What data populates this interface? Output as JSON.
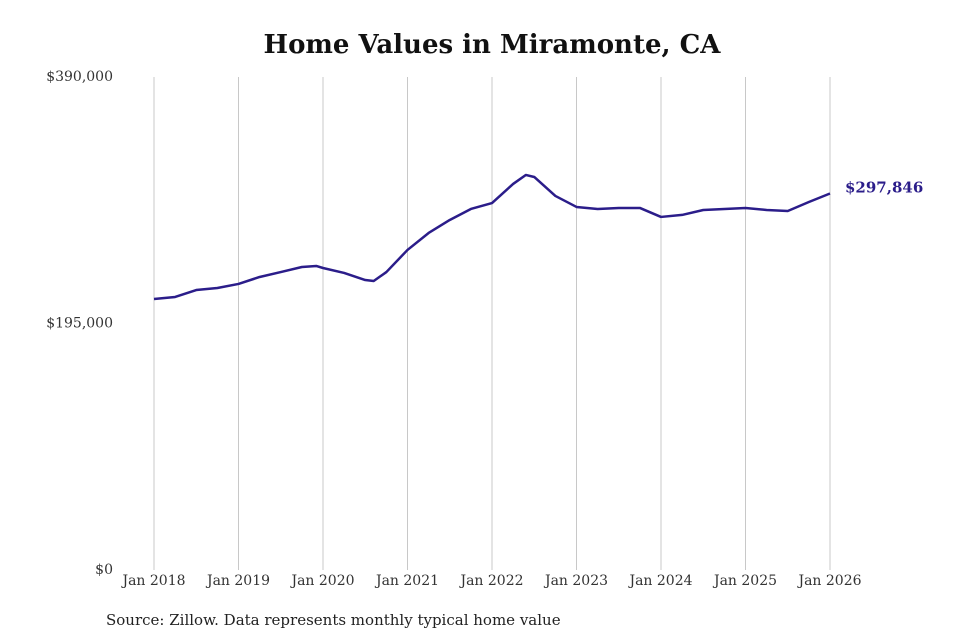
{
  "chart_data": {
    "type": "line",
    "title": "Home Values in Miramonte, CA",
    "source": "Source: Zillow. Data represents monthly typical home value",
    "x": [
      2018.0,
      2018.25,
      2018.5,
      2018.75,
      2019.0,
      2019.25,
      2019.5,
      2019.75,
      2019.92,
      2020.0,
      2020.25,
      2020.5,
      2020.6,
      2020.75,
      2021.0,
      2021.25,
      2021.5,
      2021.75,
      2022.0,
      2022.25,
      2022.4,
      2022.5,
      2022.75,
      2023.0,
      2023.25,
      2023.5,
      2023.75,
      2024.0,
      2024.25,
      2024.5,
      2024.75,
      2025.0,
      2025.25,
      2025.5,
      2025.75,
      2026.0
    ],
    "series": [
      {
        "color": "#2b1d8a",
        "values": [
          214400,
          216000,
          221500,
          223100,
          226300,
          231800,
          235700,
          239700,
          240500,
          238900,
          235000,
          229400,
          228600,
          235700,
          253200,
          266600,
          276900,
          285600,
          290300,
          305400,
          312500,
          310900,
          295900,
          287200,
          285600,
          286400,
          286400,
          279300,
          280900,
          284800,
          285600,
          286400,
          284800,
          284000,
          291100,
          297846
        ],
        "value_labels": [
          null,
          null,
          null,
          null,
          null,
          null,
          null,
          null,
          null,
          null,
          null,
          null,
          null,
          null,
          null,
          null,
          null,
          null,
          null,
          null,
          null,
          null,
          null,
          null,
          null,
          null,
          null,
          null,
          null,
          null,
          null,
          null,
          null,
          null,
          null,
          "$297,846"
        ]
      }
    ],
    "xlim": [
      2018,
      2026
    ],
    "xticks": [
      {
        "value": 2018,
        "label": "Jan 2018"
      },
      {
        "value": 2019,
        "label": "Jan 2019"
      },
      {
        "value": 2020,
        "label": "Jan 2020"
      },
      {
        "value": 2021,
        "label": "Jan 2021"
      },
      {
        "value": 2022,
        "label": "Jan 2022"
      },
      {
        "value": 2023,
        "label": "Jan 2023"
      },
      {
        "value": 2024,
        "label": "Jan 2024"
      },
      {
        "value": 2025,
        "label": "Jan 2025"
      },
      {
        "value": 2026,
        "label": "Jan 2026"
      }
    ],
    "ylim": [
      0,
      390000
    ],
    "yticks": [
      {
        "value": 0,
        "label": "$0"
      },
      {
        "value": 195000,
        "label": "$195,000"
      },
      {
        "value": 390000,
        "label": "$390,000"
      }
    ],
    "grid": true
  }
}
